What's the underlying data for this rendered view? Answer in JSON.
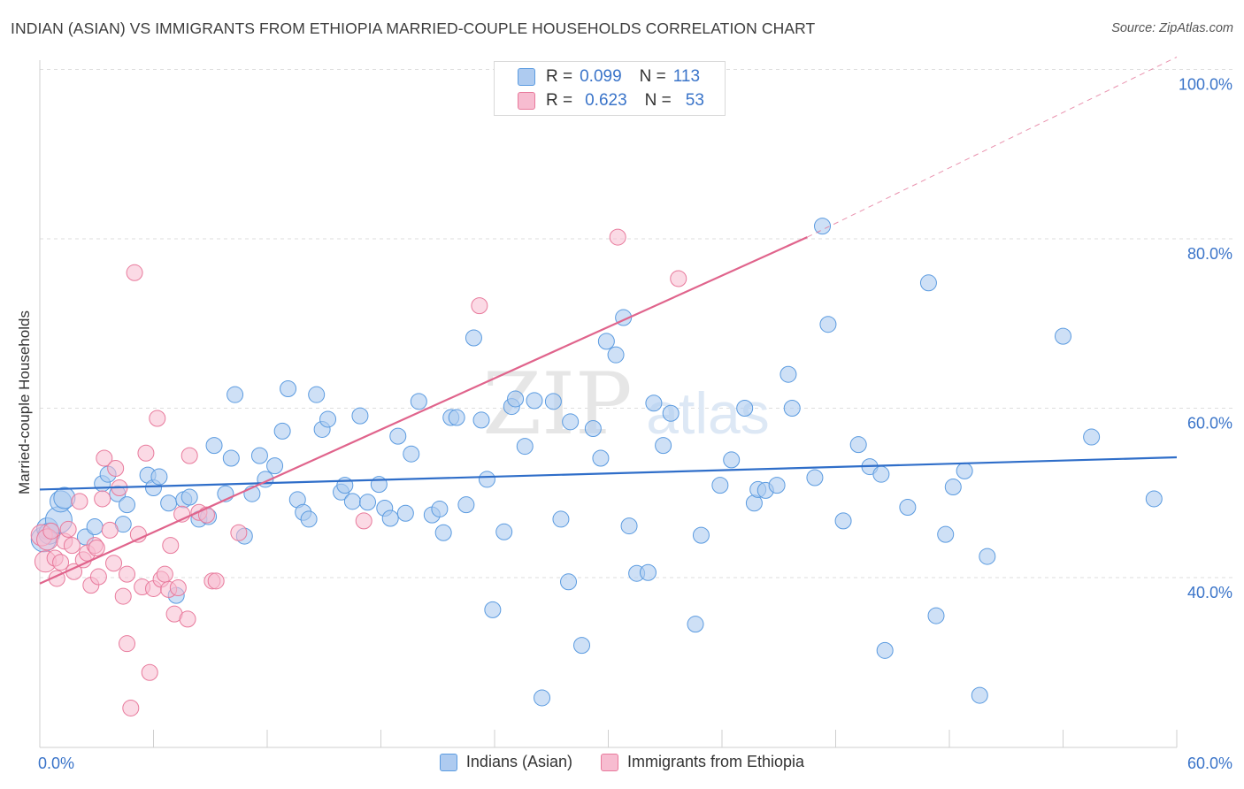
{
  "header": {
    "title": "INDIAN (ASIAN) VS IMMIGRANTS FROM ETHIOPIA MARRIED-COUPLE HOUSEHOLDS CORRELATION CHART",
    "source": "Source: ZipAtlas.com"
  },
  "colors": {
    "blue": "#5b9be0",
    "blue_fill": "#aecbf0",
    "blue_line": "#2f6ec9",
    "pink": "#e87a9c",
    "pink_fill": "#f7bcd0",
    "pink_line": "#e0648c",
    "tick_label": "#3a74c9",
    "grid": "#dedede"
  },
  "legend_top": {
    "rows": [
      {
        "r_label": "R =",
        "r_value": "0.099",
        "n_label": "N =",
        "n_value": "113"
      },
      {
        "r_label": "R =",
        "r_value": "0.623",
        "n_label": "N =",
        "n_value": "53"
      }
    ]
  },
  "legend_bottom": {
    "items": [
      {
        "label": "Indians (Asian)"
      },
      {
        "label": "Immigrants from Ethiopia"
      }
    ]
  },
  "watermark": {
    "zip": "ZIP",
    "atlas": "atlas"
  },
  "chart_data": {
    "type": "scatter",
    "title": "INDIAN (ASIAN) VS IMMIGRANTS FROM ETHIOPIA MARRIED-COUPLE HOUSEHOLDS CORRELATION CHART",
    "xlabel": "",
    "ylabel": "Married-couple Households",
    "xlim": [
      0,
      60
    ],
    "ylim": [
      22,
      102
    ],
    "x_tick_labels": [
      "0.0%",
      "60.0%"
    ],
    "y_ticks": [
      40,
      60,
      80,
      100
    ],
    "y_tick_labels": [
      "40.0%",
      "60.0%",
      "80.0%",
      "100.0%"
    ],
    "grid": true,
    "legend_position": "top-center",
    "series": [
      {
        "name": "Indians (Asian)",
        "r": 0.099,
        "n": 113,
        "trend": {
          "x0": 0,
          "y0": 50.4,
          "x1": 60,
          "y1": 54.2
        },
        "points": [
          [
            0.2,
            44.5
          ],
          [
            0.4,
            45.8
          ],
          [
            0.5,
            45.2
          ],
          [
            1.0,
            46.8
          ],
          [
            1.1,
            49.0
          ],
          [
            1.3,
            49.4
          ],
          [
            2.4,
            44.8
          ],
          [
            2.9,
            46.0
          ],
          [
            3.3,
            51.1
          ],
          [
            3.6,
            52.2
          ],
          [
            4.1,
            49.9
          ],
          [
            4.4,
            46.3
          ],
          [
            4.6,
            48.6
          ],
          [
            5.7,
            52.1
          ],
          [
            6.0,
            50.6
          ],
          [
            6.3,
            51.9
          ],
          [
            6.8,
            48.8
          ],
          [
            7.2,
            37.9
          ],
          [
            7.6,
            49.2
          ],
          [
            7.9,
            49.5
          ],
          [
            8.4,
            46.9
          ],
          [
            8.9,
            47.2
          ],
          [
            9.2,
            55.6
          ],
          [
            9.8,
            49.9
          ],
          [
            10.1,
            54.1
          ],
          [
            10.3,
            61.6
          ],
          [
            10.8,
            44.9
          ],
          [
            11.2,
            49.9
          ],
          [
            11.6,
            54.4
          ],
          [
            11.9,
            51.6
          ],
          [
            12.4,
            53.2
          ],
          [
            12.8,
            57.3
          ],
          [
            13.1,
            62.3
          ],
          [
            13.6,
            49.2
          ],
          [
            13.9,
            47.7
          ],
          [
            14.2,
            46.9
          ],
          [
            14.6,
            61.6
          ],
          [
            14.9,
            57.5
          ],
          [
            15.2,
            58.7
          ],
          [
            15.9,
            50.1
          ],
          [
            16.1,
            50.9
          ],
          [
            16.5,
            49.0
          ],
          [
            16.9,
            59.1
          ],
          [
            17.3,
            48.9
          ],
          [
            17.9,
            51.0
          ],
          [
            18.2,
            48.2
          ],
          [
            18.5,
            47.0
          ],
          [
            18.9,
            56.7
          ],
          [
            19.3,
            47.6
          ],
          [
            19.6,
            54.6
          ],
          [
            20.0,
            60.8
          ],
          [
            20.7,
            47.4
          ],
          [
            21.1,
            48.1
          ],
          [
            21.3,
            45.3
          ],
          [
            21.7,
            58.9
          ],
          [
            22.0,
            58.9
          ],
          [
            22.5,
            48.6
          ],
          [
            22.9,
            68.3
          ],
          [
            23.3,
            58.6
          ],
          [
            23.6,
            51.6
          ],
          [
            23.9,
            36.2
          ],
          [
            24.5,
            45.4
          ],
          [
            24.9,
            60.2
          ],
          [
            25.1,
            61.1
          ],
          [
            25.6,
            55.5
          ],
          [
            26.1,
            60.9
          ],
          [
            26.5,
            25.8
          ],
          [
            27.1,
            60.8
          ],
          [
            27.5,
            46.9
          ],
          [
            27.9,
            39.5
          ],
          [
            28.0,
            58.4
          ],
          [
            28.6,
            32.0
          ],
          [
            29.2,
            57.6
          ],
          [
            29.6,
            54.1
          ],
          [
            29.9,
            67.9
          ],
          [
            30.4,
            66.3
          ],
          [
            30.8,
            70.7
          ],
          [
            31.1,
            46.1
          ],
          [
            31.5,
            40.5
          ],
          [
            32.1,
            40.6
          ],
          [
            32.4,
            60.6
          ],
          [
            32.9,
            55.6
          ],
          [
            33.3,
            59.4
          ],
          [
            34.6,
            34.5
          ],
          [
            34.9,
            45.0
          ],
          [
            35.9,
            50.9
          ],
          [
            36.5,
            53.9
          ],
          [
            37.2,
            60.0
          ],
          [
            37.7,
            48.8
          ],
          [
            37.9,
            50.4
          ],
          [
            38.3,
            50.3
          ],
          [
            38.9,
            50.9
          ],
          [
            39.5,
            64.0
          ],
          [
            39.7,
            60.0
          ],
          [
            40.9,
            51.8
          ],
          [
            41.3,
            81.5
          ],
          [
            41.6,
            69.9
          ],
          [
            42.4,
            46.7
          ],
          [
            43.2,
            55.7
          ],
          [
            43.8,
            53.1
          ],
          [
            44.4,
            52.2
          ],
          [
            44.6,
            31.4
          ],
          [
            45.8,
            48.3
          ],
          [
            46.9,
            74.8
          ],
          [
            47.3,
            35.5
          ],
          [
            47.8,
            45.1
          ],
          [
            48.2,
            50.7
          ],
          [
            48.8,
            52.6
          ],
          [
            49.6,
            26.1
          ],
          [
            50.0,
            42.5
          ],
          [
            54.0,
            68.5
          ],
          [
            55.5,
            56.6
          ],
          [
            58.8,
            49.3
          ]
        ]
      },
      {
        "name": "Immigrants from Ethiopia",
        "r": 0.623,
        "n": 53,
        "trend": {
          "x0": 0,
          "y0": 39.3,
          "x1": 40.5,
          "y1": 80.2
        },
        "trend_dashed_to": {
          "x": 60,
          "y": 100.0
        },
        "points": [
          [
            0.1,
            45.0
          ],
          [
            0.3,
            41.9
          ],
          [
            0.4,
            44.5
          ],
          [
            0.6,
            45.5
          ],
          [
            0.8,
            42.3
          ],
          [
            0.9,
            39.9
          ],
          [
            1.1,
            41.8
          ],
          [
            1.3,
            44.3
          ],
          [
            1.5,
            45.7
          ],
          [
            1.7,
            43.8
          ],
          [
            1.8,
            40.7
          ],
          [
            2.1,
            49.0
          ],
          [
            2.3,
            42.1
          ],
          [
            2.5,
            42.9
          ],
          [
            2.7,
            39.1
          ],
          [
            2.9,
            43.8
          ],
          [
            3.1,
            40.1
          ],
          [
            3.3,
            49.3
          ],
          [
            3.4,
            54.1
          ],
          [
            3.7,
            45.6
          ],
          [
            3.9,
            41.7
          ],
          [
            4.0,
            52.9
          ],
          [
            4.2,
            50.6
          ],
          [
            4.4,
            37.8
          ],
          [
            4.6,
            40.4
          ],
          [
            4.6,
            32.2
          ],
          [
            4.8,
            24.6
          ],
          [
            5.0,
            76.0
          ],
          [
            5.2,
            45.1
          ],
          [
            5.4,
            38.9
          ],
          [
            5.6,
            54.7
          ],
          [
            5.8,
            28.8
          ],
          [
            6.0,
            38.7
          ],
          [
            6.2,
            58.8
          ],
          [
            6.4,
            39.8
          ],
          [
            6.6,
            40.4
          ],
          [
            6.8,
            38.6
          ],
          [
            6.9,
            43.8
          ],
          [
            7.1,
            35.7
          ],
          [
            7.3,
            38.8
          ],
          [
            7.5,
            47.5
          ],
          [
            7.8,
            35.1
          ],
          [
            7.9,
            54.4
          ],
          [
            8.4,
            47.7
          ],
          [
            8.8,
            47.4
          ],
          [
            9.1,
            39.6
          ],
          [
            9.3,
            39.6
          ],
          [
            10.5,
            45.3
          ],
          [
            17.1,
            46.7
          ],
          [
            23.2,
            72.1
          ],
          [
            30.5,
            80.2
          ],
          [
            33.7,
            75.3
          ],
          [
            3.0,
            43.5
          ]
        ]
      }
    ]
  }
}
